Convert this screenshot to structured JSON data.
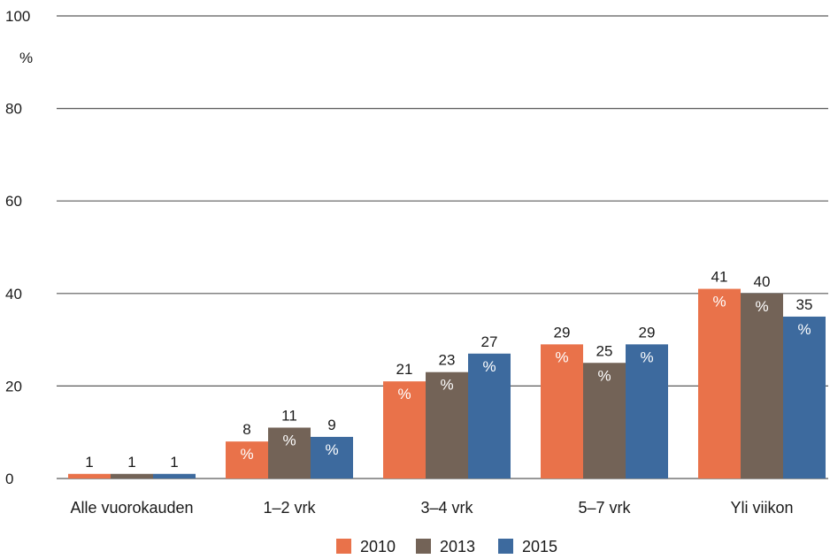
{
  "chart_data": {
    "type": "bar",
    "y_unit": "%",
    "categories": [
      "Alle vuorokauden",
      "1–2 vrk",
      "3–4 vrk",
      "5–7 vrk",
      "Yli viikon"
    ],
    "series": [
      {
        "name": "2010",
        "color": "#e9724a",
        "values": [
          1,
          8,
          21,
          29,
          41
        ]
      },
      {
        "name": "2013",
        "color": "#736357",
        "values": [
          1,
          11,
          23,
          25,
          40
        ]
      },
      {
        "name": "2015",
        "color": "#3d6a9e",
        "values": [
          1,
          9,
          27,
          29,
          35
        ]
      }
    ],
    "bar_value_suffix": "%",
    "ylim": [
      0,
      100
    ],
    "yticks": [
      0,
      20,
      40,
      60,
      80,
      100
    ],
    "grid": true,
    "legend_position": "bottom"
  }
}
